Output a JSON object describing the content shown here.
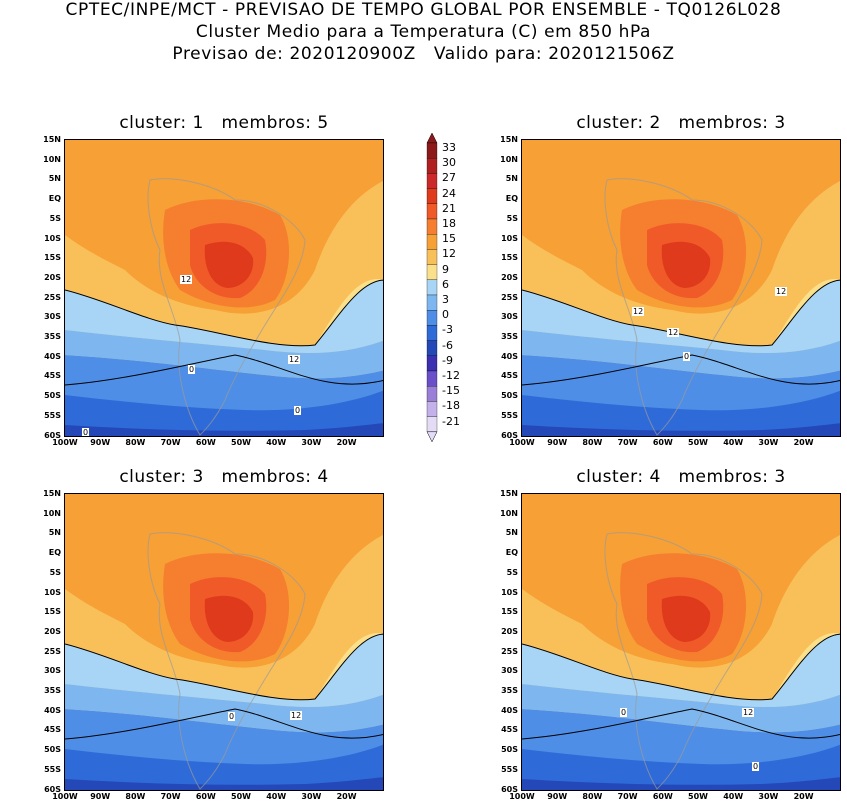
{
  "header": {
    "line1": "CPTEC/INPE/MCT - PREVISAO DE TEMPO GLOBAL POR ENSEMBLE - TQ0126L028",
    "line2": "Cluster Medio para a Temperatura (C) em 850 hPa",
    "line3": "Previsao de: 2020120900Z   Valido para: 2020121506Z"
  },
  "panels": [
    {
      "title": "cluster: 1   membros: 5",
      "contour_labels": [
        "12",
        "12",
        "0",
        "0",
        "0"
      ]
    },
    {
      "title": "cluster: 2   membros: 3",
      "contour_labels": [
        "12",
        "12",
        "12",
        "0"
      ]
    },
    {
      "title": "cluster: 3   membros: 4",
      "contour_labels": [
        "12",
        "0"
      ]
    },
    {
      "title": "cluster: 4   membros: 3",
      "contour_labels": [
        "12",
        "0",
        "0"
      ]
    }
  ],
  "lat_ticks": [
    "15N",
    "10N",
    "5N",
    "EQ",
    "5S",
    "10S",
    "15S",
    "20S",
    "25S",
    "30S",
    "35S",
    "40S",
    "45S",
    "50S",
    "55S",
    "60S"
  ],
  "lon_ticks": [
    "100W",
    "90W",
    "80W",
    "70W",
    "60W",
    "50W",
    "40W",
    "30W",
    "20W"
  ],
  "colorbar": {
    "labels": [
      "33",
      "30",
      "27",
      "24",
      "21",
      "18",
      "15",
      "12",
      "9",
      "6",
      "3",
      "0",
      "-3",
      "-6",
      "-9",
      "-12",
      "-15",
      "-18",
      "-21"
    ],
    "colors": [
      "#8c1a1a",
      "#b02020",
      "#cc2a2a",
      "#e03a1c",
      "#f05a28",
      "#f57f2e",
      "#f7a035",
      "#f9c05a",
      "#fbe08c",
      "#a8d4f5",
      "#7eb7f0",
      "#4f8ee6",
      "#2f6bd8",
      "#2448b8",
      "#3a30b0",
      "#6a4fc8",
      "#9a7ed8",
      "#c4b0ea",
      "#e4dcf7"
    ]
  }
}
